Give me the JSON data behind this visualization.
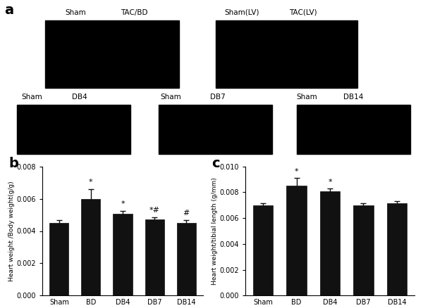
{
  "panel_a_letter": "a",
  "panel_b_letter": "b",
  "panel_c_letter": "c",
  "bar_b_categories": [
    "Sham",
    "BD",
    "DB4",
    "DB7",
    "DB14"
  ],
  "bar_b_values": [
    0.0045,
    0.006,
    0.00505,
    0.0047,
    0.00452
  ],
  "bar_b_errors": [
    0.00018,
    0.0006,
    0.0002,
    0.00015,
    0.00015
  ],
  "bar_b_ylabel": "Heart weight /Body weight(g/g)",
  "bar_b_ylim": [
    0,
    0.008
  ],
  "bar_b_yticks": [
    0.0,
    0.002,
    0.004,
    0.006,
    0.008
  ],
  "bar_b_significance": [
    {
      "bar": 1,
      "text": "*"
    },
    {
      "bar": 2,
      "text": "*"
    },
    {
      "bar": 3,
      "text": "*#"
    },
    {
      "bar": 4,
      "text": "#"
    }
  ],
  "bar_c_categories": [
    "Sham",
    "BD",
    "DB4",
    "DB7",
    "DB14"
  ],
  "bar_c_values": [
    0.007,
    0.0085,
    0.00805,
    0.007,
    0.00715
  ],
  "bar_c_errors": [
    0.00015,
    0.0006,
    0.00025,
    0.00015,
    0.00015
  ],
  "bar_c_ylabel": "Heart weight/tibial length (g/mm)",
  "bar_c_ylim": [
    0,
    0.01
  ],
  "bar_c_yticks": [
    0.0,
    0.002,
    0.004,
    0.006,
    0.008,
    0.01
  ],
  "bar_c_significance": [
    {
      "bar": 1,
      "text": "*"
    },
    {
      "bar": 2,
      "text": "*"
    }
  ],
  "bar_color": "#111111",
  "error_color": "#111111",
  "background_color": "#ffffff",
  "font_color": "#000000"
}
